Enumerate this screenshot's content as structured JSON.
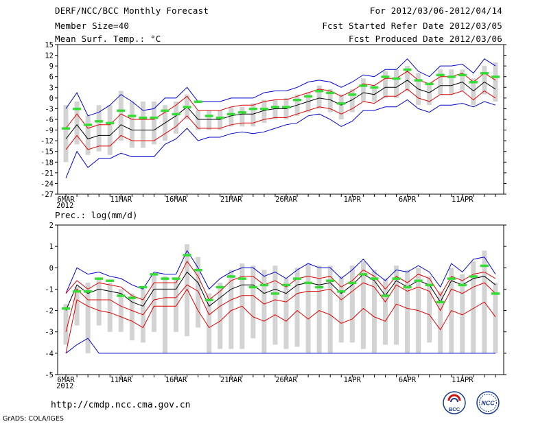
{
  "header": {
    "title": "DERF/NCC/BCC Monthly Forecast",
    "member_size": "Member Size=40",
    "variable": "Mean Surf. Temp.: °C",
    "period": "For 2012/03/06-2012/04/14",
    "started": "Fcst Started Refer Date 2012/03/05",
    "produced": "Fcst Produced Date 2012/03/06"
  },
  "footer": {
    "url": "http://cmdp.ncc.cma.gov.cn",
    "credit": "GrADS: COLA/IGES",
    "logo_bcc": "BCC",
    "logo_ncc": "NCC"
  },
  "colors": {
    "ens_box": "#d3d3d3",
    "obs_bar": "#33dd33",
    "mean_line": "#000000",
    "sd_line": "#dd0000",
    "range_line": "#0000cc"
  },
  "chart_data": [
    {
      "type": "line",
      "title": "Mean Surf. Temp.: °C",
      "ylim": [
        -27,
        15
      ],
      "yticks": [
        15,
        12,
        9,
        6,
        3,
        0,
        -3,
        -6,
        -9,
        -12,
        -15,
        -18,
        -21,
        -24,
        -27
      ],
      "xlim": [
        0,
        39
      ],
      "xtick_labels": [
        {
          "day": 0,
          "label": "6MAR"
        },
        {
          "day": 5,
          "label": "11MAR"
        },
        {
          "day": 10,
          "label": "16MAR"
        },
        {
          "day": 15,
          "label": "21MAR"
        },
        {
          "day": 20,
          "label": "26MAR"
        },
        {
          "day": 26,
          "label": "1APR"
        },
        {
          "day": 31,
          "label": "6APR"
        },
        {
          "day": 36,
          "label": "11APR"
        }
      ],
      "year_label": "2012",
      "series": {
        "mean": [
          -11.5,
          -7.5,
          -11.5,
          -10.5,
          -10.5,
          -7.5,
          -9,
          -9,
          -9,
          -7,
          -5,
          -2.5,
          -6,
          -6,
          -6,
          -5,
          -4.5,
          -4.5,
          -3.5,
          -3,
          -3,
          -2,
          -1,
          0,
          -0.5,
          -2,
          -0.5,
          1.5,
          1,
          3,
          3,
          5,
          2.5,
          1.5,
          3.5,
          3.5,
          4.5,
          2,
          4.5,
          2.5
        ],
        "mean_plus_sd": [
          -8.5,
          -4.5,
          -8.5,
          -7.5,
          -7.5,
          -4.5,
          -6,
          -6,
          -6,
          -4,
          -2,
          0.5,
          -3.5,
          -3.5,
          -3.5,
          -2.5,
          -2,
          -2,
          -1,
          -0.5,
          -0.5,
          0.5,
          1.5,
          2.5,
          2,
          0.5,
          2,
          4,
          3.5,
          5.5,
          5.5,
          7.5,
          5,
          4,
          6,
          6,
          7,
          4.5,
          7,
          5
        ],
        "mean_minus_sd": [
          -14.5,
          -10.5,
          -14.5,
          -13.5,
          -13.5,
          -10.5,
          -12,
          -12,
          -12,
          -10,
          -8,
          -5,
          -8.5,
          -8.5,
          -8.5,
          -7.5,
          -7,
          -7,
          -6,
          -5.5,
          -5.5,
          -4.5,
          -3.5,
          -2.5,
          -3,
          -4.5,
          -3,
          -1,
          -1.5,
          0.5,
          0.5,
          2.5,
          0,
          -1,
          1,
          1,
          2,
          -0.5,
          2,
          0
        ],
        "max": [
          -3,
          1.5,
          -5,
          -4,
          -2,
          1,
          -1,
          -3.5,
          -3,
          0,
          0,
          3,
          -1,
          -1,
          -1,
          0,
          0,
          0,
          1.5,
          2,
          2,
          3,
          4.5,
          5,
          4.5,
          3,
          4.5,
          6.5,
          6,
          8,
          8,
          11,
          7.5,
          6,
          9,
          9,
          9.5,
          7,
          11,
          9
        ],
        "min": [
          -22.5,
          -15,
          -19.5,
          -17,
          -17,
          -15.5,
          -16.5,
          -16.5,
          -16.5,
          -13,
          -11.5,
          -8.5,
          -12,
          -11,
          -11,
          -10,
          -9.5,
          -10,
          -9.5,
          -8.5,
          -7.5,
          -7,
          -5,
          -4.5,
          -6,
          -8,
          -6.5,
          -3.5,
          -3.5,
          -2.5,
          -2.5,
          -0.5,
          -3,
          -4,
          -2,
          -2,
          -1.5,
          -2.5,
          -1,
          -2
        ],
        "obs": [
          -8.5,
          -3,
          -7.5,
          -6.5,
          -7,
          -3.5,
          -5,
          -5.5,
          -5.5,
          -3.5,
          -4.5,
          -2.5,
          -1,
          -5,
          -5.5,
          -4.5,
          -4,
          -3,
          -3,
          -2.5,
          -2.5,
          -0.5,
          0.5,
          2,
          1.5,
          -1.5,
          1,
          3.5,
          3,
          6,
          5.5,
          8,
          5,
          4,
          6.5,
          6,
          6.5,
          4.5,
          7,
          6
        ],
        "box_upper": [
          -2,
          -1,
          -5,
          -2,
          -2,
          2,
          -1,
          -1,
          -1,
          -2,
          -1,
          1,
          -3.5,
          -3.5,
          -3.5,
          -2.5,
          -2.5,
          -1.5,
          -0.5,
          -0.5,
          0,
          1,
          1.5,
          3.5,
          2.5,
          1,
          2.5,
          5.5,
          3.5,
          7.5,
          8,
          9,
          7,
          4,
          8,
          8,
          8,
          5.5,
          9,
          10
        ],
        "box_lower": [
          -18,
          -13,
          -16,
          -15,
          -16,
          -12,
          -14,
          -14,
          -13,
          -12,
          -10,
          -6,
          -9,
          -9,
          -9,
          -8,
          -8,
          -8,
          -7,
          -6,
          -6,
          -5,
          -4,
          -3,
          -4,
          -6,
          -4,
          -1,
          -1,
          0,
          0,
          2,
          -2,
          -2,
          1,
          1,
          2,
          -2,
          1,
          -1
        ]
      }
    },
    {
      "type": "line",
      "title": "Prec.: log(mm/d)",
      "ylim": [
        -5,
        2
      ],
      "yticks": [
        2,
        1,
        0,
        -1,
        -2,
        -3,
        -4,
        -5
      ],
      "xlim": [
        0,
        39
      ],
      "xtick_labels": [
        {
          "day": 0,
          "label": "6MAR"
        },
        {
          "day": 5,
          "label": "11MAR"
        },
        {
          "day": 10,
          "label": "16MAR"
        },
        {
          "day": 15,
          "label": "21MAR"
        },
        {
          "day": 20,
          "label": "26MAR"
        },
        {
          "day": 26,
          "label": "1APR"
        },
        {
          "day": 31,
          "label": "6APR"
        },
        {
          "day": 36,
          "label": "11APR"
        }
      ],
      "year_label": "2012",
      "series": {
        "mean": [
          -2,
          -0.8,
          -1.2,
          -1,
          -1.1,
          -1.2,
          -1.6,
          -1.8,
          -1,
          -1,
          -1,
          -0.2,
          -0.7,
          -1.8,
          -1.4,
          -1,
          -0.8,
          -0.8,
          -1.2,
          -1,
          -1.2,
          -0.8,
          -0.7,
          -0.8,
          -0.7,
          -1.2,
          -0.8,
          -0.3,
          -0.6,
          -1.3,
          -0.6,
          -0.9,
          -0.6,
          -0.8,
          -1.6,
          -0.6,
          -0.8,
          -0.5,
          -0.4,
          -0.8
        ],
        "mean_plus_sd": [
          -1.2,
          -0.6,
          -1,
          -0.7,
          -0.8,
          -0.9,
          -1.3,
          -1.5,
          -0.7,
          -0.7,
          -0.7,
          0.3,
          -0.4,
          -1.5,
          -1.1,
          -0.6,
          -0.4,
          -0.4,
          -0.8,
          -0.6,
          -0.9,
          -0.5,
          -0.4,
          -0.5,
          -0.4,
          -0.9,
          -0.6,
          -0.1,
          -0.4,
          -1,
          -0.4,
          -0.7,
          -0.3,
          -0.5,
          -1.3,
          -0.4,
          -0.6,
          -0.3,
          -0.2,
          -0.5
        ],
        "mean_minus_sd": [
          -3,
          -1,
          -1.5,
          -1.5,
          -1.5,
          -1.8,
          -2,
          -2.2,
          -1.5,
          -1.4,
          -1.4,
          -0.8,
          -1.1,
          -2.2,
          -1.8,
          -1.5,
          -1.3,
          -1.3,
          -1.7,
          -1.5,
          -1.6,
          -1.2,
          -1.1,
          -1.1,
          -1,
          -1.5,
          -1.1,
          -0.7,
          -0.9,
          -1.6,
          -0.8,
          -1.1,
          -0.9,
          -1.1,
          -2,
          -1,
          -1.2,
          -0.9,
          -0.7,
          -1.2
        ],
        "min_sd2": [
          -4,
          -1.5,
          -1.8,
          -2,
          -2.1,
          -2.3,
          -2.5,
          -2.8,
          -1.8,
          -1.8,
          -1.8,
          -1,
          -2,
          -2.8,
          -2.5,
          -2,
          -1.8,
          -2.3,
          -2.5,
          -2.2,
          -2.5,
          -2,
          -2.4,
          -2,
          -2.2,
          -2.6,
          -2.4,
          -1.9,
          -2.3,
          -2.5,
          -1.7,
          -1.9,
          -2,
          -2.2,
          -2.9,
          -2,
          -2.2,
          -1.9,
          -1.6,
          -2.3
        ],
        "max": [
          -1.2,
          0,
          -0.3,
          -0.2,
          -0.4,
          -0.5,
          -0.8,
          -1,
          -0.2,
          -0.3,
          -0.3,
          0.8,
          0,
          -1,
          -0.5,
          -0.2,
          0,
          0,
          -0.4,
          -0.2,
          -0.5,
          -0.1,
          0.2,
          0,
          0,
          -0.5,
          -0.1,
          0.4,
          -0.2,
          -0.6,
          -0.1,
          -0.2,
          0.1,
          -0.2,
          -0.9,
          0.2,
          -0.2,
          0.4,
          0.5,
          -0.3
        ],
        "min": [
          -4,
          -3.6,
          -3.3,
          -4,
          -4,
          -4,
          -4,
          -4,
          -4,
          -4,
          -4,
          -4,
          -4,
          -4,
          -4,
          -4,
          -4,
          -4,
          -4,
          -4,
          -4,
          -4,
          -4,
          -4,
          -4,
          -4,
          -4,
          -4,
          -4,
          -4,
          -4,
          -4,
          -4,
          -4,
          -4,
          -4,
          -4,
          -4,
          -4,
          -4
        ],
        "obs": [
          -1.9,
          -1.1,
          -1.1,
          -0.5,
          -0.6,
          -1.3,
          -1.4,
          -0.9,
          -0.3,
          -0.5,
          -0.5,
          0.6,
          -0.1,
          -1.5,
          -0.9,
          -0.4,
          -0.5,
          -0.9,
          -0.8,
          -1.2,
          -0.8,
          -0.5,
          -0.7,
          -0.9,
          -0.6,
          -1.1,
          -0.7,
          -0.3,
          -0.5,
          -1.3,
          -0.5,
          -0.9,
          -0.6,
          -0.8,
          -1.6,
          -0.5,
          -0.8,
          -0.4,
          0.1,
          -1.2
        ],
        "box_upper": [
          -1.7,
          -0.9,
          -0.7,
          -0.5,
          -0.7,
          -1,
          -1.2,
          -1,
          -0.3,
          -0.4,
          -0.5,
          1.1,
          0.5,
          -1.2,
          -0.7,
          -0.1,
          0.2,
          0.1,
          -0.1,
          0.1,
          -0.5,
          0,
          0.2,
          0.1,
          0.1,
          -0.4,
          0.1,
          0.3,
          -0.1,
          -0.5,
          0.1,
          -0.1,
          0,
          -0.4,
          -1.1,
          0,
          -0.3,
          0.3,
          0.8,
          -0.7
        ],
        "box_lower": [
          -3.6,
          -2.7,
          -4,
          -2.7,
          -3,
          -3,
          -3.4,
          -3.5,
          -3,
          -4,
          -3,
          -3.2,
          -2.8,
          -4,
          -3.8,
          -3.8,
          -3.8,
          -3.3,
          -4,
          -3.6,
          -3.8,
          -3.7,
          -4,
          -4,
          -4,
          -3.5,
          -3.5,
          -3.8,
          -4,
          -3.6,
          -3.6,
          -4,
          -4,
          -3.5,
          -4,
          -4,
          -4,
          -4,
          -4,
          -4
        ]
      }
    }
  ]
}
